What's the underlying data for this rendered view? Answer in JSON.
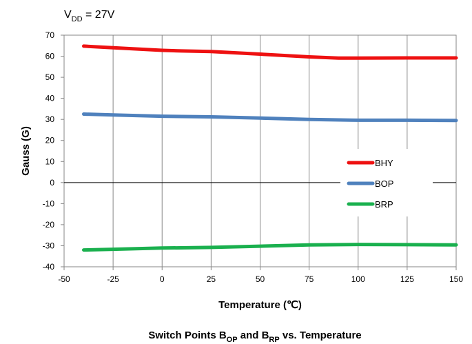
{
  "condition": {
    "symbol": "V",
    "sub": "DD",
    "rest": " = 27V"
  },
  "caption": {
    "p1": "Switch Points B",
    "s1": "OP",
    "p2": " and B",
    "s2": "RP",
    "p3": " vs. Temperature"
  },
  "chart_data": {
    "type": "line",
    "xlabel": "Temperature (℃)",
    "ylabel": "Gauss (G)",
    "xlim": [
      -50,
      150
    ],
    "ylim": [
      -40,
      70
    ],
    "xticks": [
      -50,
      -25,
      0,
      25,
      50,
      75,
      100,
      125,
      150
    ],
    "yticks": [
      70,
      60,
      50,
      40,
      30,
      20,
      10,
      0,
      -10,
      -20,
      -30,
      -40
    ],
    "grid": "vertical",
    "legend_position": "right",
    "series": [
      {
        "name": "BHY",
        "color": "#ee1111",
        "x": [
          -40,
          -25,
          0,
          10,
          25,
          50,
          75,
          90,
          100,
          125,
          150
        ],
        "y": [
          64.8,
          64.0,
          62.8,
          62.5,
          62.2,
          61.0,
          59.7,
          59.1,
          59.1,
          59.2,
          59.2
        ]
      },
      {
        "name": "BOP",
        "color": "#4f81bd",
        "x": [
          -40,
          -25,
          0,
          25,
          50,
          75,
          100,
          125,
          150
        ],
        "y": [
          32.5,
          32.1,
          31.5,
          31.2,
          30.6,
          30.0,
          29.6,
          29.6,
          29.5
        ]
      },
      {
        "name": "BRP",
        "color": "#1ab04e",
        "x": [
          -40,
          -25,
          0,
          25,
          50,
          75,
          100,
          125,
          150
        ],
        "y": [
          -32.0,
          -31.7,
          -31.1,
          -30.8,
          -30.2,
          -29.6,
          -29.4,
          -29.5,
          -29.6
        ]
      }
    ]
  }
}
